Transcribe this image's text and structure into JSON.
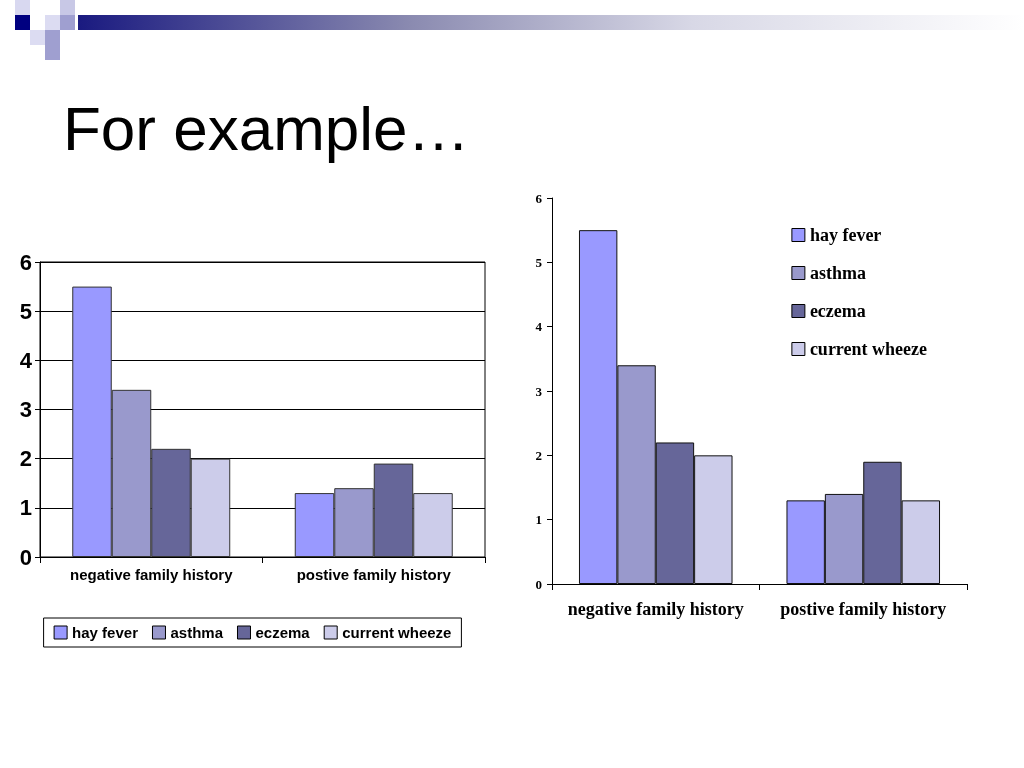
{
  "chart_data": [
    {
      "type": "bar",
      "title": "For example…",
      "categories": [
        "negative family history",
        "postive family history"
      ],
      "series": [
        {
          "name": "hay fever",
          "color": "#9999ff",
          "values": [
            5.5,
            1.3
          ]
        },
        {
          "name": "asthma",
          "color": "#9999cc",
          "values": [
            3.4,
            1.4
          ]
        },
        {
          "name": "eczema",
          "color": "#666699",
          "values": [
            2.2,
            1.9
          ]
        },
        {
          "name": "current wheeze",
          "color": "#ccccea",
          "values": [
            2.0,
            1.3
          ]
        }
      ],
      "ylim": [
        0,
        6
      ],
      "yticks": [
        0,
        1,
        2,
        3,
        4,
        5,
        6
      ],
      "grid": "y",
      "legend": "bottom"
    },
    {
      "type": "bar",
      "categories": [
        "negative family history",
        "postive family history"
      ],
      "series": [
        {
          "name": "hay fever",
          "color": "#9999ff",
          "values": [
            5.5,
            1.3
          ]
        },
        {
          "name": "asthma",
          "color": "#9999cc",
          "values": [
            3.4,
            1.4
          ]
        },
        {
          "name": "eczema",
          "color": "#666699",
          "values": [
            2.2,
            1.9
          ]
        },
        {
          "name": "current wheeze",
          "color": "#ccccea",
          "values": [
            2.0,
            1.3
          ]
        }
      ],
      "ylim": [
        0,
        6
      ],
      "yticks": [
        0,
        1,
        2,
        3,
        4,
        5,
        6
      ],
      "grid": false,
      "legend": "top right"
    }
  ]
}
